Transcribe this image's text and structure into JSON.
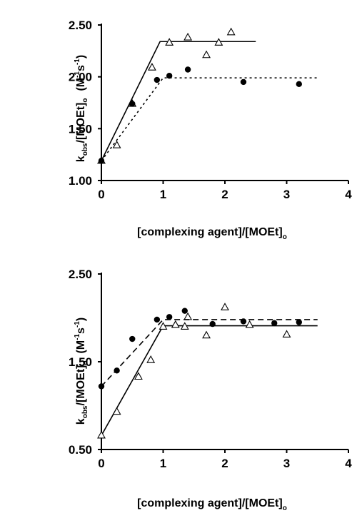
{
  "chart_data": [
    {
      "type": "scatter",
      "title": "",
      "xlabel": {
        "main": "[complexing agent]/[MOEt]",
        "subscript": "o"
      },
      "ylabel": {
        "k": "k",
        "k_sub": "obs",
        "den": "/[MOEt]",
        "den_sub": "o",
        "units_pre": "(M",
        "units_exp1": "-1",
        "units_mid": "s",
        "units_exp2": "-1",
        "units_post": ")"
      },
      "xlim": [
        0,
        4
      ],
      "ylim": [
        1.0,
        2.5
      ],
      "x_ticks": [
        0,
        1,
        2,
        3,
        4
      ],
      "x_tick_labels": [
        "0",
        "1",
        "2",
        "3",
        "4"
      ],
      "y_ticks": [
        1.0,
        1.5,
        2.0,
        2.5
      ],
      "y_tick_labels": [
        "1.00",
        "1.50",
        "2.00",
        "2.50"
      ],
      "series": [
        {
          "marker": "open-triangle",
          "points": [
            [
              0,
              1.19
            ],
            [
              0.25,
              1.34
            ],
            [
              0.5,
              1.74
            ],
            [
              0.82,
              2.09
            ],
            [
              1.1,
              2.33
            ],
            [
              1.4,
              2.38
            ],
            [
              1.7,
              2.21
            ],
            [
              1.9,
              2.33
            ],
            [
              2.1,
              2.43
            ]
          ],
          "fit": {
            "style": "solid",
            "points": [
              [
                0,
                1.19
              ],
              [
                0.95,
                2.34
              ],
              [
                2.5,
                2.34
              ]
            ]
          }
        },
        {
          "marker": "filled-circle",
          "points": [
            [
              0,
              1.19
            ],
            [
              0.5,
              1.74
            ],
            [
              0.9,
              1.97
            ],
            [
              1.1,
              2.01
            ],
            [
              1.4,
              2.07
            ],
            [
              2.3,
              1.95
            ],
            [
              3.2,
              1.93
            ]
          ],
          "fit": {
            "style": "dotted",
            "points": [
              [
                0,
                1.19
              ],
              [
                1.0,
                1.99
              ],
              [
                3.5,
                1.99
              ]
            ]
          }
        }
      ]
    },
    {
      "type": "scatter",
      "title": "",
      "xlabel": {
        "main": "[complexing agent]/[MOEt]",
        "subscript": "o"
      },
      "ylabel": {
        "k": "k",
        "k_sub": "obs",
        "den": "/[MOEt]",
        "den_sub": "o",
        "units_pre": "(M",
        "units_exp1": "-1",
        "units_mid": "s",
        "units_exp2": "-1",
        "units_post": ")"
      },
      "xlim": [
        0,
        4
      ],
      "ylim": [
        0.5,
        2.5
      ],
      "x_ticks": [
        0,
        1,
        2,
        3,
        4
      ],
      "x_tick_labels": [
        "0",
        "1",
        "2",
        "3",
        "4"
      ],
      "y_ticks": [
        0.5,
        1.5,
        2.5
      ],
      "y_tick_labels": [
        "0.50",
        "1.50",
        "2.50"
      ],
      "y_label_ticks": [
        0.5,
        1.5,
        2.5
      ],
      "series": [
        {
          "marker": "open-triangle",
          "points": [
            [
              0,
              0.66
            ],
            [
              0.25,
              0.93
            ],
            [
              0.6,
              1.33
            ],
            [
              0.8,
              1.52
            ],
            [
              1.0,
              1.9
            ],
            [
              1.2,
              1.92
            ],
            [
              1.35,
              1.9
            ],
            [
              1.4,
              2.01
            ],
            [
              1.7,
              1.8
            ],
            [
              2.0,
              2.12
            ],
            [
              2.4,
              1.92
            ],
            [
              3.0,
              1.81
            ]
          ],
          "fit": {
            "style": "solid",
            "points": [
              [
                0,
                0.66
              ],
              [
                1.0,
                1.91
              ],
              [
                3.5,
                1.91
              ]
            ]
          }
        },
        {
          "marker": "filled-circle",
          "points": [
            [
              0,
              1.22
            ],
            [
              0.25,
              1.4
            ],
            [
              0.5,
              1.76
            ],
            [
              0.9,
              1.98
            ],
            [
              1.1,
              2.01
            ],
            [
              1.35,
              2.08
            ],
            [
              1.8,
              1.93
            ],
            [
              2.3,
              1.96
            ],
            [
              2.8,
              1.94
            ],
            [
              3.2,
              1.95
            ]
          ],
          "fit": {
            "style": "dashed",
            "points": [
              [
                0,
                1.22
              ],
              [
                1.0,
                1.98
              ],
              [
                3.5,
                1.98
              ]
            ]
          }
        }
      ]
    }
  ]
}
